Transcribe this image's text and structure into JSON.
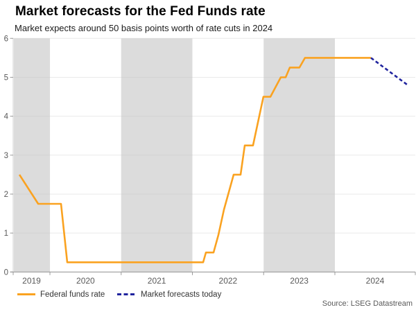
{
  "header": {
    "title": "Market forecasts for the Fed Funds rate",
    "subtitle": "Market expects around 50 basis points worth of rate cuts in 2024"
  },
  "legend": {
    "items": [
      {
        "label": "Federal funds rate",
        "color": "#FAA220",
        "style": "solid"
      },
      {
        "label": "Market forecasts today",
        "color": "#20249E",
        "style": "dashed"
      }
    ]
  },
  "footer": {
    "source": "Source: LSEG Datastream"
  },
  "chart_data": {
    "type": "line",
    "title": "Market forecasts for the Fed Funds rate",
    "subtitle": "Market expects around 50 basis points worth of rate cuts in 2024",
    "xlabel": "",
    "ylabel": "",
    "x_axis": {
      "range": [
        2019.484,
        2025.129
      ],
      "year_boundaries": [
        2020,
        2021,
        2022,
        2023,
        2024
      ],
      "labels": [
        "2019",
        "2020",
        "2021",
        "2022",
        "2023",
        "2024"
      ]
    },
    "y_axis": {
      "range": [
        0,
        6
      ],
      "ticks": [
        0,
        1,
        2,
        3,
        4,
        5,
        6
      ],
      "grid_values": [
        1,
        2,
        3,
        4,
        5,
        6
      ]
    },
    "shaded_spans": [
      [
        2019.484,
        2020
      ],
      [
        2021,
        2022
      ],
      [
        2023,
        2024
      ]
    ],
    "series": [
      {
        "name": "Federal funds rate",
        "style": "solid",
        "color": "#FAA220",
        "points": [
          [
            2019.572,
            2.5
          ],
          [
            2019.835,
            1.75
          ],
          [
            2020.156,
            1.75
          ],
          [
            2020.243,
            0.25
          ],
          [
            2022.151,
            0.25
          ],
          [
            2022.19,
            0.5
          ],
          [
            2022.297,
            0.5
          ],
          [
            2022.365,
            0.95
          ],
          [
            2022.443,
            1.6
          ],
          [
            2022.579,
            2.5
          ],
          [
            2022.676,
            2.5
          ],
          [
            2022.735,
            3.25
          ],
          [
            2022.851,
            3.25
          ],
          [
            2022.997,
            4.5
          ],
          [
            2023.095,
            4.5
          ],
          [
            2023.241,
            5.0
          ],
          [
            2023.309,
            5.0
          ],
          [
            2023.367,
            5.25
          ],
          [
            2023.503,
            5.25
          ],
          [
            2023.581,
            5.5
          ],
          [
            2024.506,
            5.5
          ]
        ]
      },
      {
        "name": "Market forecasts today",
        "style": "dashed",
        "color": "#20249E",
        "points": [
          [
            2024.506,
            5.5
          ],
          [
            2025.022,
            4.8
          ]
        ]
      }
    ],
    "style": {
      "band_color": "#DCDCDC",
      "grid_color": "#BFBFBF",
      "grid_opacity": 0.35,
      "axis_color": "#999999",
      "tick_label_color": "#595959",
      "line_width": 2.6
    }
  }
}
